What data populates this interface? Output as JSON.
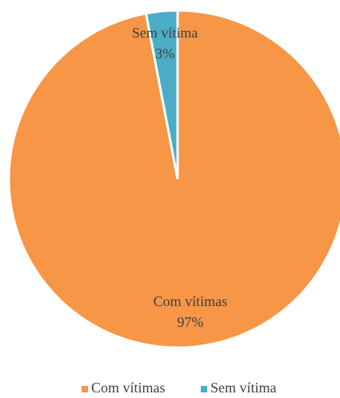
{
  "chart_data": {
    "type": "pie",
    "categories": [
      "Com vítimas",
      "Sem vítima"
    ],
    "values": [
      97,
      3
    ],
    "value_labels": [
      "97%",
      "3%"
    ],
    "colors": [
      "#F79646",
      "#4BACC6"
    ],
    "legend": "bottom"
  }
}
